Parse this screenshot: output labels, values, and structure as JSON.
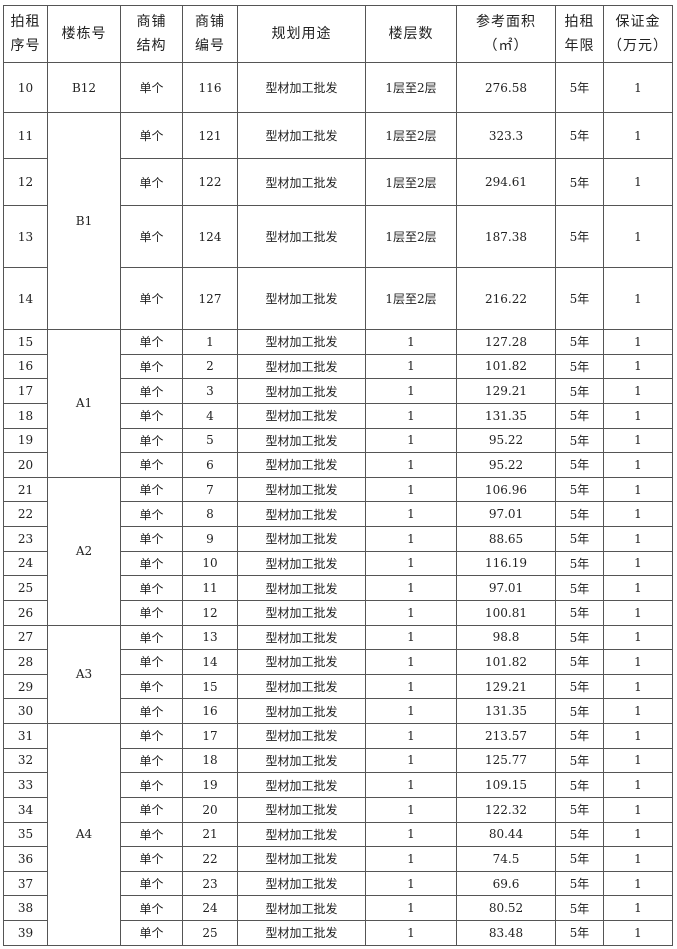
{
  "headers": [
    "拍租序号",
    "楼栋号",
    "商铺结构",
    "商铺编号",
    "规划用途",
    "楼层数",
    "参考面积（㎡）",
    "拍租年限",
    "保证金（万元）"
  ],
  "header_lines": [
    [
      "拍租",
      "序号"
    ],
    [
      "楼栋号"
    ],
    [
      "商铺",
      "结构"
    ],
    [
      "商铺",
      "编号"
    ],
    [
      "规划用途"
    ],
    [
      "楼层数"
    ],
    [
      "参考面积",
      "（㎡）"
    ],
    [
      "拍租",
      "年限"
    ],
    [
      "保证金",
      "（万元）"
    ]
  ],
  "groups": [
    {
      "building": "B12",
      "rows": [
        {
          "no": "10",
          "structure": "单个",
          "shop_no": "116",
          "use": "型材加工批发",
          "floors": "1层至2层",
          "area": "276.58",
          "term": "5年",
          "deposit": "1"
        }
      ]
    },
    {
      "building": "B1",
      "rows": [
        {
          "no": "11",
          "structure": "单个",
          "shop_no": "121",
          "use": "型材加工批发",
          "floors": "1层至2层",
          "area": "323.3",
          "term": "5年",
          "deposit": "1"
        },
        {
          "no": "12",
          "structure": "单个",
          "shop_no": "122",
          "use": "型材加工批发",
          "floors": "1层至2层",
          "area": "294.61",
          "term": "5年",
          "deposit": "1"
        },
        {
          "no": "13",
          "structure": "单个",
          "shop_no": "124",
          "use": "型材加工批发",
          "floors": "1层至2层",
          "area": "187.38",
          "term": "5年",
          "deposit": "1"
        },
        {
          "no": "14",
          "structure": "单个",
          "shop_no": "127",
          "use": "型材加工批发",
          "floors": "1层至2层",
          "area": "216.22",
          "term": "5年",
          "deposit": "1"
        }
      ]
    },
    {
      "building": "A1",
      "rows": [
        {
          "no": "15",
          "structure": "单个",
          "shop_no": "1",
          "use": "型材加工批发",
          "floors": "1",
          "area": "127.28",
          "term": "5年",
          "deposit": "1"
        },
        {
          "no": "16",
          "structure": "单个",
          "shop_no": "2",
          "use": "型材加工批发",
          "floors": "1",
          "area": "101.82",
          "term": "5年",
          "deposit": "1"
        },
        {
          "no": "17",
          "structure": "单个",
          "shop_no": "3",
          "use": "型材加工批发",
          "floors": "1",
          "area": "129.21",
          "term": "5年",
          "deposit": "1"
        },
        {
          "no": "18",
          "structure": "单个",
          "shop_no": "4",
          "use": "型材加工批发",
          "floors": "1",
          "area": "131.35",
          "term": "5年",
          "deposit": "1"
        },
        {
          "no": "19",
          "structure": "单个",
          "shop_no": "5",
          "use": "型材加工批发",
          "floors": "1",
          "area": "95.22",
          "term": "5年",
          "deposit": "1"
        },
        {
          "no": "20",
          "structure": "单个",
          "shop_no": "6",
          "use": "型材加工批发",
          "floors": "1",
          "area": "95.22",
          "term": "5年",
          "deposit": "1"
        }
      ]
    },
    {
      "building": "A2",
      "rows": [
        {
          "no": "21",
          "structure": "单个",
          "shop_no": "7",
          "use": "型材加工批发",
          "floors": "1",
          "area": "106.96",
          "term": "5年",
          "deposit": "1"
        },
        {
          "no": "22",
          "structure": "单个",
          "shop_no": "8",
          "use": "型材加工批发",
          "floors": "1",
          "area": "97.01",
          "term": "5年",
          "deposit": "1"
        },
        {
          "no": "23",
          "structure": "单个",
          "shop_no": "9",
          "use": "型材加工批发",
          "floors": "1",
          "area": "88.65",
          "term": "5年",
          "deposit": "1"
        },
        {
          "no": "24",
          "structure": "单个",
          "shop_no": "10",
          "use": "型材加工批发",
          "floors": "1",
          "area": "116.19",
          "term": "5年",
          "deposit": "1"
        },
        {
          "no": "25",
          "structure": "单个",
          "shop_no": "11",
          "use": "型材加工批发",
          "floors": "1",
          "area": "97.01",
          "term": "5年",
          "deposit": "1"
        },
        {
          "no": "26",
          "structure": "单个",
          "shop_no": "12",
          "use": "型材加工批发",
          "floors": "1",
          "area": "100.81",
          "term": "5年",
          "deposit": "1"
        }
      ]
    },
    {
      "building": "A3",
      "rows": [
        {
          "no": "27",
          "structure": "单个",
          "shop_no": "13",
          "use": "型材加工批发",
          "floors": "1",
          "area": "98.8",
          "term": "5年",
          "deposit": "1"
        },
        {
          "no": "28",
          "structure": "单个",
          "shop_no": "14",
          "use": "型材加工批发",
          "floors": "1",
          "area": "101.82",
          "term": "5年",
          "deposit": "1"
        },
        {
          "no": "29",
          "structure": "单个",
          "shop_no": "15",
          "use": "型材加工批发",
          "floors": "1",
          "area": "129.21",
          "term": "5年",
          "deposit": "1"
        },
        {
          "no": "30",
          "structure": "单个",
          "shop_no": "16",
          "use": "型材加工批发",
          "floors": "1",
          "area": "131.35",
          "term": "5年",
          "deposit": "1"
        }
      ]
    },
    {
      "building": "A4",
      "rows": [
        {
          "no": "31",
          "structure": "单个",
          "shop_no": "17",
          "use": "型材加工批发",
          "floors": "1",
          "area": "213.57",
          "term": "5年",
          "deposit": "1"
        },
        {
          "no": "32",
          "structure": "单个",
          "shop_no": "18",
          "use": "型材加工批发",
          "floors": "1",
          "area": "125.77",
          "term": "5年",
          "deposit": "1"
        },
        {
          "no": "33",
          "structure": "单个",
          "shop_no": "19",
          "use": "型材加工批发",
          "floors": "1",
          "area": "109.15",
          "term": "5年",
          "deposit": "1"
        },
        {
          "no": "34",
          "structure": "单个",
          "shop_no": "20",
          "use": "型材加工批发",
          "floors": "1",
          "area": "122.32",
          "term": "5年",
          "deposit": "1"
        },
        {
          "no": "35",
          "structure": "单个",
          "shop_no": "21",
          "use": "型材加工批发",
          "floors": "1",
          "area": "80.44",
          "term": "5年",
          "deposit": "1"
        },
        {
          "no": "36",
          "structure": "单个",
          "shop_no": "22",
          "use": "型材加工批发",
          "floors": "1",
          "area": "74.5",
          "term": "5年",
          "deposit": "1"
        },
        {
          "no": "37",
          "structure": "单个",
          "shop_no": "23",
          "use": "型材加工批发",
          "floors": "1",
          "area": "69.6",
          "term": "5年",
          "deposit": "1"
        },
        {
          "no": "38",
          "structure": "单个",
          "shop_no": "24",
          "use": "型材加工批发",
          "floors": "1",
          "area": "80.52",
          "term": "5年",
          "deposit": "1"
        },
        {
          "no": "39",
          "structure": "单个",
          "shop_no": "25",
          "use": "型材加工批发",
          "floors": "1",
          "area": "83.48",
          "term": "5年",
          "deposit": "1"
        }
      ]
    }
  ]
}
